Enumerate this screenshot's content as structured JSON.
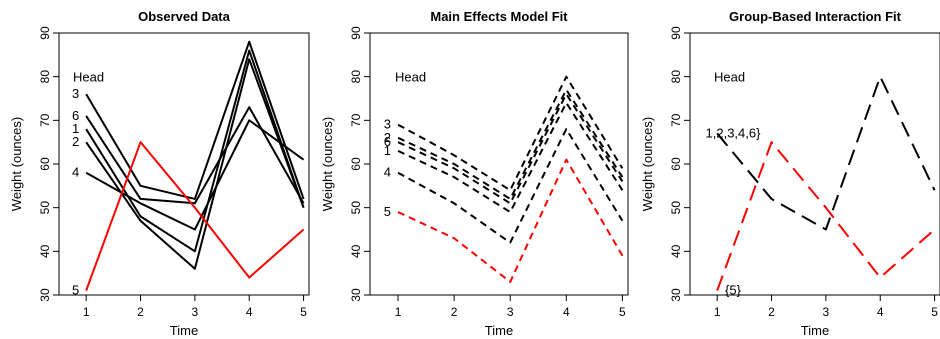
{
  "chart_data": [
    {
      "type": "line",
      "title": "Observed Data",
      "xlabel": "Time",
      "ylabel": "Weight (ounces)",
      "x": [
        1,
        2,
        3,
        4,
        5
      ],
      "xlim": [
        0.5,
        5.1
      ],
      "ylim": [
        30,
        90
      ],
      "xticks": [
        1,
        2,
        3,
        4,
        5
      ],
      "yticks": [
        30,
        40,
        50,
        60,
        70,
        80,
        90
      ],
      "annotation": "Head",
      "line_style": "solid",
      "series": [
        {
          "label": "3",
          "color": "#000000",
          "values": [
            76,
            55,
            52,
            88,
            52
          ]
        },
        {
          "label": "6",
          "color": "#000000",
          "values": [
            71,
            52,
            51,
            73,
            51
          ]
        },
        {
          "label": "1",
          "color": "#000000",
          "values": [
            68,
            48,
            40,
            86,
            50
          ]
        },
        {
          "label": "2",
          "color": "#000000",
          "values": [
            65,
            47,
            36,
            84,
            50
          ]
        },
        {
          "label": "4",
          "color": "#000000",
          "values": [
            58,
            51,
            45,
            70,
            61
          ]
        },
        {
          "label": "5",
          "color": "#ff0000",
          "values": [
            31,
            65,
            50,
            34,
            45
          ]
        }
      ]
    },
    {
      "type": "line",
      "title": "Main Effects Model Fit",
      "xlabel": "Time",
      "ylabel": "Weight (ounces)",
      "x": [
        1,
        2,
        3,
        4,
        5
      ],
      "xlim": [
        0.5,
        5.1
      ],
      "ylim": [
        30,
        90
      ],
      "xticks": [
        1,
        2,
        3,
        4,
        5
      ],
      "yticks": [
        30,
        40,
        50,
        60,
        70,
        80,
        90
      ],
      "annotation": "Head",
      "line_style": "dashed",
      "series": [
        {
          "label": "3",
          "color": "#000000",
          "values": [
            69,
            62,
            54,
            80,
            59
          ]
        },
        {
          "label": "2",
          "color": "#000000",
          "values": [
            66,
            60,
            52,
            77,
            57
          ]
        },
        {
          "label": "6",
          "color": "#000000",
          "values": [
            65,
            59,
            51,
            76,
            56
          ]
        },
        {
          "label": "1",
          "color": "#000000",
          "values": [
            63,
            57,
            49,
            74,
            54
          ]
        },
        {
          "label": "4",
          "color": "#000000",
          "values": [
            58,
            51,
            42,
            68,
            47
          ]
        },
        {
          "label": "5",
          "color": "#ff0000",
          "values": [
            49,
            43,
            33,
            61,
            39
          ]
        }
      ]
    },
    {
      "type": "line",
      "title": "Group-Based Interaction Fit",
      "xlabel": "Time",
      "ylabel": "Weight (ounces)",
      "x": [
        1,
        2,
        3,
        4,
        5
      ],
      "xlim": [
        0.5,
        5.1
      ],
      "ylim": [
        30,
        90
      ],
      "xticks": [
        1,
        2,
        3,
        4,
        5
      ],
      "yticks": [
        30,
        40,
        50,
        60,
        70,
        80,
        90
      ],
      "annotation": "Head",
      "line_style": "longdash",
      "series": [
        {
          "label": "1,2,3,4,6}",
          "color": "#000000",
          "values": [
            67,
            52,
            45,
            80,
            54
          ]
        },
        {
          "label": "{5}",
          "color": "#ff0000",
          "values": [
            31,
            65,
            50,
            34,
            45
          ]
        }
      ]
    }
  ]
}
